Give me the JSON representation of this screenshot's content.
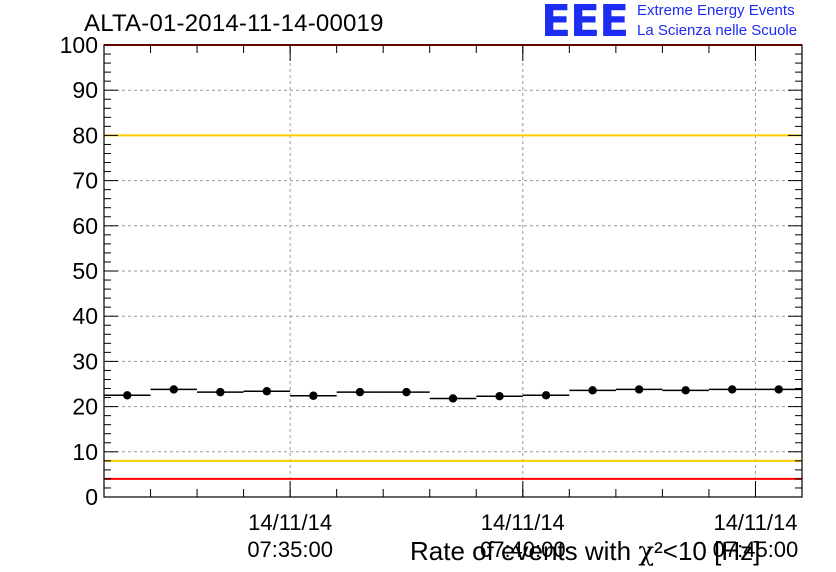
{
  "header": {
    "title": "ALTA-01-2014-11-14-00019",
    "logo_mark": "EEE",
    "logo_line1": "Extreme Energy Events",
    "logo_line2": "La Scienza nelle Scuole",
    "brand_color": "#1d2cf3"
  },
  "chart_data": {
    "type": "scatter",
    "title": "ALTA-01-2014-11-14-00019",
    "xlabel_prefix": "Rate of events with ",
    "xlabel_symbol": "χ",
    "xlabel_suffix": "²<10 [Hz]",
    "ylabel": "",
    "ylim": [
      0,
      100
    ],
    "y_ticks": [
      "0",
      "10",
      "20",
      "30",
      "40",
      "50",
      "60",
      "70",
      "80",
      "90",
      "100"
    ],
    "x_range_minutes": [
      0,
      15
    ],
    "x_ticks": [
      {
        "date": "14/11/14",
        "time": "07:35:00"
      },
      {
        "date": "14/11/14",
        "time": "07:40:00"
      },
      {
        "date": "14/11/14",
        "time": "07:45:00"
      }
    ],
    "grid": true,
    "points": [
      {
        "t": "07:31:30",
        "y": 22.5
      },
      {
        "t": "07:32:30",
        "y": 23.8
      },
      {
        "t": "07:33:30",
        "y": 23.2
      },
      {
        "t": "07:34:30",
        "y": 23.4
      },
      {
        "t": "07:35:30",
        "y": 22.4
      },
      {
        "t": "07:36:30",
        "y": 23.2
      },
      {
        "t": "07:37:30",
        "y": 23.2
      },
      {
        "t": "07:38:30",
        "y": 21.8
      },
      {
        "t": "07:39:30",
        "y": 22.3
      },
      {
        "t": "07:40:30",
        "y": 22.5
      },
      {
        "t": "07:41:30",
        "y": 23.6
      },
      {
        "t": "07:42:30",
        "y": 23.8
      },
      {
        "t": "07:43:30",
        "y": 23.6
      },
      {
        "t": "07:44:30",
        "y": 23.8
      },
      {
        "t": "07:45:30",
        "y": 23.8
      }
    ],
    "reference_lines": [
      {
        "y": 100,
        "color": "#ff0000"
      },
      {
        "y": 80,
        "color": "#ffcc00"
      },
      {
        "y": 8,
        "color": "#ffcc00"
      },
      {
        "y": 4,
        "color": "#ff0000"
      }
    ],
    "point_color": "#000000"
  }
}
